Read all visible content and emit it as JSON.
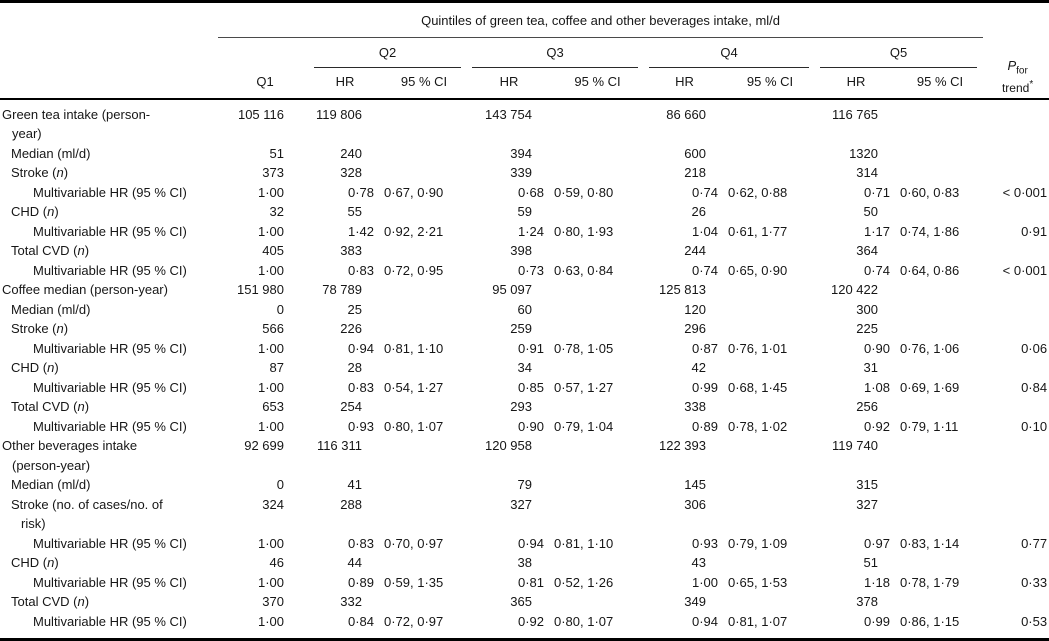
{
  "table": {
    "title": "Quintiles of green tea, coffee and other beverages intake, ml/d",
    "col_q1": "Q1",
    "col_hr": "HR",
    "col_ci": "95 % CI",
    "groups": [
      "Q2",
      "Q3",
      "Q4",
      "Q5"
    ],
    "p_header": {
      "p": "P",
      "sub": "for",
      "line2": "trend",
      "star": "*"
    },
    "rows": [
      {
        "label": "Green tea intake (person-\nyear)",
        "indent": 0,
        "kind": "py",
        "values": [
          "105 116",
          "119 806",
          "",
          "143 754",
          "",
          "86 660",
          "",
          "116 765",
          "",
          ""
        ]
      },
      {
        "label": "Median (ml/d)",
        "indent": 1,
        "kind": "count",
        "values": [
          "51",
          "240",
          "",
          "394",
          "",
          "600",
          "",
          "1320",
          "",
          ""
        ]
      },
      {
        "label": "Stroke (n)",
        "indent": 1,
        "kind": "count",
        "values": [
          "373",
          "328",
          "",
          "339",
          "",
          "218",
          "",
          "314",
          "",
          ""
        ]
      },
      {
        "label": "Multivariable HR (95 % CI)",
        "indent": 2,
        "kind": "hr",
        "values": [
          "1·00",
          "0·78",
          "0·67, 0·90",
          "0·68",
          "0·59, 0·80",
          "0·74",
          "0·62, 0·88",
          "0·71",
          "0·60, 0·83",
          "< 0·001"
        ]
      },
      {
        "label": "CHD (n)",
        "indent": 1,
        "kind": "count",
        "values": [
          "32",
          "55",
          "",
          "59",
          "",
          "26",
          "",
          "50",
          "",
          ""
        ]
      },
      {
        "label": "Multivariable HR (95 % CI)",
        "indent": 2,
        "kind": "hr",
        "values": [
          "1·00",
          "1·42",
          "0·92, 2·21",
          "1·24",
          "0·80, 1·93",
          "1·04",
          "0·61, 1·77",
          "1·17",
          "0·74, 1·86",
          "0·91"
        ]
      },
      {
        "label": "Total CVD (n)",
        "indent": 1,
        "kind": "count",
        "values": [
          "405",
          "383",
          "",
          "398",
          "",
          "244",
          "",
          "364",
          "",
          ""
        ]
      },
      {
        "label": "Multivariable HR (95 % CI)",
        "indent": 2,
        "kind": "hr",
        "values": [
          "1·00",
          "0·83",
          "0·72, 0·95",
          "0·73",
          "0·63, 0·84",
          "0·74",
          "0·65, 0·90",
          "0·74",
          "0·64, 0·86",
          "< 0·001"
        ]
      },
      {
        "label": "Coffee median (person-year)",
        "indent": 0,
        "kind": "py",
        "values": [
          "151 980",
          "78 789",
          "",
          "95 097",
          "",
          "125 813",
          "",
          "120 422",
          "",
          ""
        ]
      },
      {
        "label": "Median (ml/d)",
        "indent": 1,
        "kind": "count",
        "values": [
          "0",
          "25",
          "",
          "60",
          "",
          "120",
          "",
          "300",
          "",
          ""
        ]
      },
      {
        "label": "Stroke (n)",
        "indent": 1,
        "kind": "count",
        "values": [
          "566",
          "226",
          "",
          "259",
          "",
          "296",
          "",
          "225",
          "",
          ""
        ]
      },
      {
        "label": "Multivariable HR (95 % CI)",
        "indent": 2,
        "kind": "hr",
        "values": [
          "1·00",
          "0·94",
          "0·81, 1·10",
          "0·91",
          "0·78, 1·05",
          "0·87",
          "0·76, 1·01",
          "0·90",
          "0·76, 1·06",
          "0·06"
        ]
      },
      {
        "label": "CHD (n)",
        "indent": 1,
        "kind": "count",
        "values": [
          "87",
          "28",
          "",
          "34",
          "",
          "42",
          "",
          "31",
          "",
          ""
        ]
      },
      {
        "label": "Multivariable HR (95 % CI)",
        "indent": 2,
        "kind": "hr",
        "values": [
          "1·00",
          "0·83",
          "0·54, 1·27",
          "0·85",
          "0·57, 1·27",
          "0·99",
          "0·68, 1·45",
          "1·08",
          "0·69, 1·69",
          "0·84"
        ]
      },
      {
        "label": "Total CVD (n)",
        "indent": 1,
        "kind": "count",
        "values": [
          "653",
          "254",
          "",
          "293",
          "",
          "338",
          "",
          "256",
          "",
          ""
        ]
      },
      {
        "label": "Multivariable HR (95 % CI)",
        "indent": 2,
        "kind": "hr",
        "values": [
          "1·00",
          "0·93",
          "0·80, 1·07",
          "0·90",
          "0·79, 1·04",
          "0·89",
          "0·78, 1·02",
          "0·92",
          "0·79, 1·11",
          "0·10"
        ]
      },
      {
        "label": "Other beverages intake\n(person-year)",
        "indent": 0,
        "kind": "py",
        "values": [
          "92 699",
          "116 311",
          "",
          "120 958",
          "",
          "122 393",
          "",
          "119 740",
          "",
          ""
        ]
      },
      {
        "label": "Median (ml/d)",
        "indent": 1,
        "kind": "count",
        "values": [
          "0",
          "41",
          "",
          "79",
          "",
          "145",
          "",
          "315",
          "",
          ""
        ]
      },
      {
        "label": "Stroke (no. of cases/no. of\nrisk)",
        "indent": 1,
        "kind": "count",
        "values": [
          "324",
          "288",
          "",
          "327",
          "",
          "306",
          "",
          "327",
          "",
          ""
        ]
      },
      {
        "label": "Multivariable HR (95 % CI)",
        "indent": 2,
        "kind": "hr",
        "values": [
          "1·00",
          "0·83",
          "0·70, 0·97",
          "0·94",
          "0·81, 1·10",
          "0·93",
          "0·79, 1·09",
          "0·97",
          "0·83, 1·14",
          "0·77"
        ]
      },
      {
        "label": "CHD (n)",
        "indent": 1,
        "kind": "count",
        "values": [
          "46",
          "44",
          "",
          "38",
          "",
          "43",
          "",
          "51",
          "",
          ""
        ]
      },
      {
        "label": "Multivariable HR (95 % CI)",
        "indent": 2,
        "kind": "hr",
        "values": [
          "1·00",
          "0·89",
          "0·59, 1·35",
          "0·81",
          "0·52, 1·26",
          "1·00",
          "0·65, 1·53",
          "1·18",
          "0·78, 1·79",
          "0·33"
        ]
      },
      {
        "label": "Total CVD (n)",
        "indent": 1,
        "kind": "count",
        "values": [
          "370",
          "332",
          "",
          "365",
          "",
          "349",
          "",
          "378",
          "",
          ""
        ]
      },
      {
        "label": "Multivariable HR (95 % CI)",
        "indent": 2,
        "kind": "hr",
        "values": [
          "1·00",
          "0·84",
          "0·72, 0·97",
          "0·92",
          "0·80, 1·07",
          "0·94",
          "0·81, 1·07",
          "0·99",
          "0·86, 1·15",
          "0·53"
        ]
      }
    ]
  }
}
